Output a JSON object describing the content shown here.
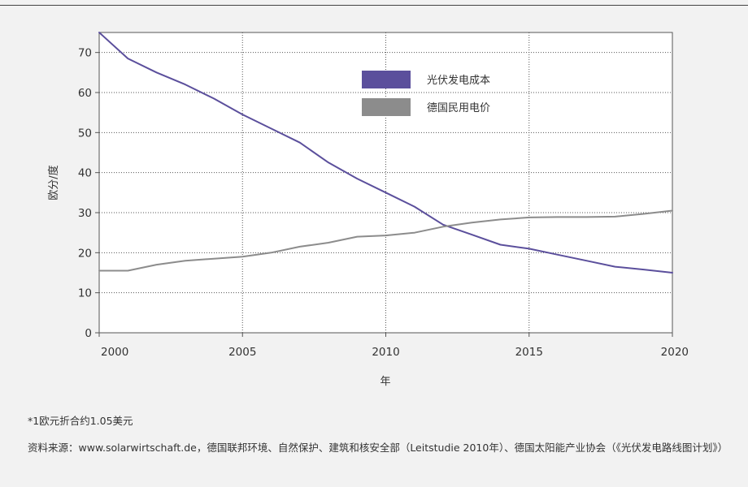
{
  "chart_data": {
    "type": "line",
    "xlabel": "年",
    "ylabel": "欧分/度",
    "xlim": [
      2000,
      2020
    ],
    "ylim": [
      0,
      75
    ],
    "x_ticks": [
      2000,
      2005,
      2010,
      2015,
      2020
    ],
    "y_ticks": [
      0,
      10,
      20,
      30,
      40,
      50,
      60,
      70
    ],
    "grid": true,
    "legend_position": "top-center",
    "series": [
      {
        "name": "光伏发电成本",
        "color": "#5b4f9c",
        "points": [
          [
            2000,
            75
          ],
          [
            2001,
            68.5
          ],
          [
            2002,
            65
          ],
          [
            2003,
            62
          ],
          [
            2004,
            58.5
          ],
          [
            2005,
            54.5
          ],
          [
            2006,
            51
          ],
          [
            2007,
            47.5
          ],
          [
            2008,
            42.5
          ],
          [
            2009,
            38.5
          ],
          [
            2010,
            35
          ],
          [
            2011,
            31.5
          ],
          [
            2012,
            27
          ],
          [
            2013,
            24.5
          ],
          [
            2014,
            22
          ],
          [
            2015,
            21
          ],
          [
            2016,
            19.5
          ],
          [
            2017,
            18
          ],
          [
            2018,
            16.5
          ],
          [
            2019,
            15.8
          ],
          [
            2020,
            15
          ]
        ]
      },
      {
        "name": "德国民用电价",
        "color": "#8c8c8c",
        "points": [
          [
            2000,
            15.5
          ],
          [
            2001,
            15.5
          ],
          [
            2002,
            17
          ],
          [
            2003,
            18
          ],
          [
            2004,
            18.5
          ],
          [
            2005,
            19
          ],
          [
            2006,
            20
          ],
          [
            2007,
            21.5
          ],
          [
            2008,
            22.5
          ],
          [
            2009,
            24
          ],
          [
            2010,
            24.3
          ],
          [
            2011,
            25
          ],
          [
            2012,
            26.5
          ],
          [
            2013,
            27.5
          ],
          [
            2014,
            28.3
          ],
          [
            2015,
            28.8
          ],
          [
            2016,
            28.9
          ],
          [
            2017,
            28.9
          ],
          [
            2018,
            29
          ],
          [
            2019,
            29.7
          ],
          [
            2020,
            30.5
          ]
        ]
      }
    ]
  },
  "footnote": "*1欧元折合约1.05美元",
  "source": "资料来源：www.solarwirtschaft.de，德国联邦环境、自然保护、建筑和核安全部（Leitstudie 2010年）、德国太阳能产业协会（《光伏发电路线图计划》）"
}
